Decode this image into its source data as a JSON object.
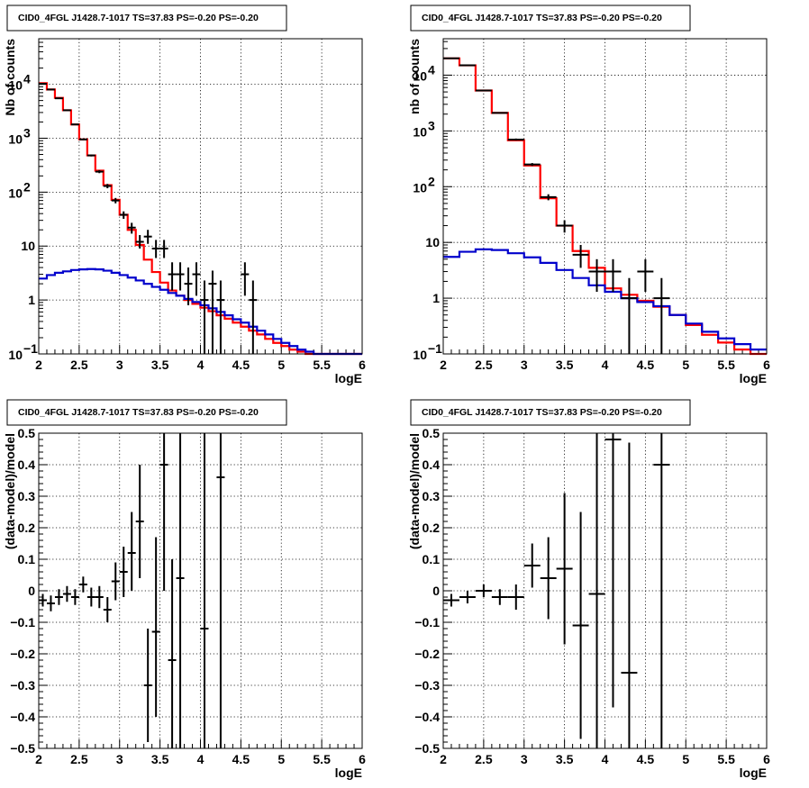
{
  "chart_data": [
    {
      "type": "line",
      "title": "CID0_4FGL J1428.7-1017 TS=37.83 PS=-0.20 PS=-0.20",
      "xlabel": "logE",
      "ylabel": "Nb of counts",
      "xlim": [
        2,
        6
      ],
      "ylim": [
        0.1,
        70000
      ],
      "yscale": "log",
      "grid": true,
      "x_ticks": [
        "2",
        "2.5",
        "3",
        "3.5",
        "4",
        "4.5",
        "5",
        "5.5",
        "6"
      ],
      "y_ticks": [
        {
          "v": 0.1,
          "base": "10",
          "exp": "−1",
          "text": ""
        },
        {
          "v": 1,
          "text": "1"
        },
        {
          "v": 10,
          "text": "10"
        },
        {
          "v": 100,
          "base": "10",
          "exp": "2",
          "text": ""
        },
        {
          "v": 1000,
          "base": "10",
          "exp": "3",
          "text": ""
        },
        {
          "v": 10000,
          "base": "10",
          "exp": "4",
          "text": ""
        }
      ],
      "bin_edges": [
        2.0,
        2.1,
        2.2,
        2.3,
        2.4,
        2.5,
        2.6,
        2.7,
        2.8,
        2.9,
        3.0,
        3.1,
        3.2,
        3.3,
        3.4,
        3.5,
        3.6,
        3.7,
        3.8,
        3.9,
        4.0,
        4.1,
        4.2,
        4.3,
        4.4,
        4.5,
        4.6,
        4.7,
        4.8,
        4.9,
        5.0,
        5.1,
        5.2,
        5.3,
        5.4,
        5.5,
        5.6,
        5.7,
        5.8,
        5.9,
        6.0
      ],
      "series": [
        {
          "color": "#ff0000",
          "values": [
            10500,
            8000,
            5600,
            3300,
            1800,
            950,
            480,
            250,
            135,
            72,
            38,
            20,
            10.5,
            5.6,
            3.3,
            2.1,
            1.5,
            1.2,
            1.0,
            0.85,
            0.72,
            0.62,
            0.52,
            0.45,
            0.38,
            0.32,
            0.27,
            0.23,
            0.19,
            0.16,
            0.14,
            0.12,
            0.11,
            0.1,
            0.1,
            0.1,
            0.1,
            0.1,
            0.1,
            0.1
          ]
        },
        {
          "color": "#0000cc",
          "values": [
            2.5,
            2.9,
            3.2,
            3.4,
            3.6,
            3.7,
            3.75,
            3.7,
            3.5,
            3.2,
            2.9,
            2.6,
            2.3,
            2.0,
            1.75,
            1.55,
            1.35,
            1.2,
            1.05,
            0.92,
            0.8,
            0.7,
            0.6,
            0.52,
            0.44,
            0.38,
            0.32,
            0.27,
            0.23,
            0.19,
            0.16,
            0.14,
            0.12,
            0.11,
            0.1,
            0.1,
            0.1,
            0.1,
            0.1,
            0.1
          ]
        }
      ],
      "points": [
        {
          "x": 2.05,
          "y": 10200,
          "dx": 0.05,
          "ylo": 10000,
          "yhi": 10400
        },
        {
          "x": 2.15,
          "y": 8000,
          "dx": 0.05,
          "ylo": 7900,
          "yhi": 8100
        },
        {
          "x": 2.25,
          "y": 5500,
          "dx": 0.05,
          "ylo": 5400,
          "yhi": 5600
        },
        {
          "x": 2.35,
          "y": 3300,
          "dx": 0.05,
          "ylo": 3250,
          "yhi": 3350
        },
        {
          "x": 2.45,
          "y": 1800,
          "dx": 0.05,
          "ylo": 1760,
          "yhi": 1840
        },
        {
          "x": 2.55,
          "y": 950,
          "dx": 0.05,
          "ylo": 920,
          "yhi": 980
        },
        {
          "x": 2.65,
          "y": 480,
          "dx": 0.05,
          "ylo": 460,
          "yhi": 500
        },
        {
          "x": 2.75,
          "y": 240,
          "dx": 0.05,
          "ylo": 225,
          "yhi": 255
        },
        {
          "x": 2.85,
          "y": 130,
          "dx": 0.05,
          "ylo": 118,
          "yhi": 142
        },
        {
          "x": 2.95,
          "y": 70,
          "dx": 0.05,
          "ylo": 62,
          "yhi": 78
        },
        {
          "x": 3.05,
          "y": 38,
          "dx": 0.05,
          "ylo": 32,
          "yhi": 44
        },
        {
          "x": 3.15,
          "y": 22,
          "dx": 0.05,
          "ylo": 17,
          "yhi": 27
        },
        {
          "x": 3.25,
          "y": 12,
          "dx": 0.05,
          "ylo": 9,
          "yhi": 16
        },
        {
          "x": 3.35,
          "y": 15,
          "dx": 0.05,
          "ylo": 11,
          "yhi": 20
        },
        {
          "x": 3.45,
          "y": 9,
          "dx": 0.05,
          "ylo": 6,
          "yhi": 13
        },
        {
          "x": 3.55,
          "y": 9,
          "dx": 0.05,
          "ylo": 6,
          "yhi": 13
        },
        {
          "x": 3.65,
          "y": 3,
          "dx": 0.05,
          "ylo": 1.5,
          "yhi": 5
        },
        {
          "x": 3.75,
          "y": 3,
          "dx": 0.05,
          "ylo": 1.5,
          "yhi": 5
        },
        {
          "x": 3.85,
          "y": 2,
          "dx": 0.05,
          "ylo": 0.8,
          "yhi": 4
        },
        {
          "x": 3.95,
          "y": 3,
          "dx": 0.05,
          "ylo": 1.2,
          "yhi": 5
        },
        {
          "x": 4.05,
          "y": 1,
          "dx": 0.05,
          "ylo": 0.1,
          "yhi": 2.3
        },
        {
          "x": 4.15,
          "y": 2,
          "dx": 0.05,
          "ylo": 0.1,
          "yhi": 3.5
        },
        {
          "x": 4.25,
          "y": 1,
          "dx": 0.05,
          "ylo": 0.1,
          "yhi": 2.3
        },
        {
          "x": 4.55,
          "y": 3,
          "dx": 0.05,
          "ylo": 1.2,
          "yhi": 5
        },
        {
          "x": 4.65,
          "y": 1,
          "dx": 0.05,
          "ylo": 0.1,
          "yhi": 2.3
        }
      ]
    },
    {
      "type": "line",
      "title": "CID0_4FGL J1428.7-1017 TS=37.83 PS=-0.20 PS=-0.20",
      "xlabel": "logE",
      "ylabel": "nb of counts",
      "xlim": [
        2,
        6
      ],
      "ylim": [
        0.1,
        45000
      ],
      "yscale": "log",
      "grid": true,
      "x_ticks": [
        "2",
        "2.5",
        "3",
        "3.5",
        "4",
        "4.5",
        "5",
        "5.5",
        "6"
      ],
      "y_ticks": [
        {
          "v": 0.1,
          "base": "10",
          "exp": "−1",
          "text": ""
        },
        {
          "v": 1,
          "text": "1"
        },
        {
          "v": 10,
          "text": "10"
        },
        {
          "v": 100,
          "base": "10",
          "exp": "2",
          "text": ""
        },
        {
          "v": 1000,
          "base": "10",
          "exp": "3",
          "text": ""
        },
        {
          "v": 10000,
          "base": "10",
          "exp": "4",
          "text": ""
        }
      ],
      "bin_edges": [
        2.0,
        2.2,
        2.4,
        2.6,
        2.8,
        3.0,
        3.2,
        3.4,
        3.6,
        3.8,
        4.0,
        4.2,
        4.4,
        4.6,
        4.8,
        5.0,
        5.2,
        5.4,
        5.6,
        5.8,
        6.0
      ],
      "series": [
        {
          "color": "#ff0000",
          "values": [
            20000,
            15000,
            5300,
            2100,
            680,
            240,
            62,
            20,
            7,
            3.5,
            1.5,
            1.15,
            0.9,
            0.7,
            0.5,
            0.33,
            0.22,
            0.16,
            0.12,
            0.1
          ]
        },
        {
          "color": "#0000cc",
          "values": [
            5.5,
            6.8,
            7.5,
            7.3,
            6.4,
            5.4,
            4.3,
            3.2,
            2.3,
            1.7,
            1.3,
            1.0,
            0.85,
            0.72,
            0.5,
            0.35,
            0.25,
            0.19,
            0.15,
            0.12
          ]
        }
      ],
      "points": [
        {
          "x": 2.1,
          "y": 20000,
          "dx": 0.1,
          "ylo": 19800,
          "yhi": 20200
        },
        {
          "x": 2.3,
          "y": 15000,
          "dx": 0.1,
          "ylo": 14850,
          "yhi": 15150
        },
        {
          "x": 2.5,
          "y": 5300,
          "dx": 0.1,
          "ylo": 5220,
          "yhi": 5380
        },
        {
          "x": 2.7,
          "y": 2100,
          "dx": 0.1,
          "ylo": 2050,
          "yhi": 2150
        },
        {
          "x": 2.9,
          "y": 700,
          "dx": 0.1,
          "ylo": 670,
          "yhi": 730
        },
        {
          "x": 3.1,
          "y": 250,
          "dx": 0.1,
          "ylo": 235,
          "yhi": 265
        },
        {
          "x": 3.3,
          "y": 65,
          "dx": 0.1,
          "ylo": 57,
          "yhi": 73
        },
        {
          "x": 3.5,
          "y": 20,
          "dx": 0.1,
          "ylo": 15,
          "yhi": 25
        },
        {
          "x": 3.7,
          "y": 6,
          "dx": 0.1,
          "ylo": 3.5,
          "yhi": 9
        },
        {
          "x": 3.9,
          "y": 3,
          "dx": 0.1,
          "ylo": 1.3,
          "yhi": 5
        },
        {
          "x": 4.1,
          "y": 3,
          "dx": 0.1,
          "ylo": 1.3,
          "yhi": 5
        },
        {
          "x": 4.3,
          "y": 1,
          "dx": 0.1,
          "ylo": 0.1,
          "yhi": 2.3
        },
        {
          "x": 4.5,
          "y": 3,
          "dx": 0.1,
          "ylo": 1.3,
          "yhi": 5
        },
        {
          "x": 4.7,
          "y": 1,
          "dx": 0.1,
          "ylo": 0.1,
          "yhi": 2.3
        }
      ]
    },
    {
      "type": "scatter",
      "title": "CID0_4FGL J1428.7-1017 TS=37.83 PS=-0.20 PS=-0.20",
      "xlabel": "logE",
      "ylabel": "(data-model)/model",
      "xlim": [
        2,
        6
      ],
      "ylim": [
        -0.5,
        0.5
      ],
      "yscale": "linear",
      "grid": true,
      "x_ticks": [
        "2",
        "2.5",
        "3",
        "3.5",
        "4",
        "4.5",
        "5",
        "5.5",
        "6"
      ],
      "y_ticks": [
        {
          "v": -0.5,
          "text": "−0.5"
        },
        {
          "v": -0.4,
          "text": "−0.4"
        },
        {
          "v": -0.3,
          "text": "−0.3"
        },
        {
          "v": -0.2,
          "text": "−0.2"
        },
        {
          "v": -0.1,
          "text": "−0.1"
        },
        {
          "v": 0,
          "text": "0"
        },
        {
          "v": 0.1,
          "text": "0.1"
        },
        {
          "v": 0.2,
          "text": "0.2"
        },
        {
          "v": 0.3,
          "text": "0.3"
        },
        {
          "v": 0.4,
          "text": "0.4"
        },
        {
          "v": 0.5,
          "text": "0.5"
        }
      ],
      "points": [
        {
          "x": 2.05,
          "y": -0.03,
          "dx": 0.05,
          "ylo": -0.05,
          "yhi": -0.01
        },
        {
          "x": 2.15,
          "y": -0.04,
          "dx": 0.05,
          "ylo": -0.065,
          "yhi": -0.015
        },
        {
          "x": 2.25,
          "y": -0.02,
          "dx": 0.05,
          "ylo": -0.045,
          "yhi": 0.005
        },
        {
          "x": 2.35,
          "y": -0.01,
          "dx": 0.05,
          "ylo": -0.035,
          "yhi": 0.015
        },
        {
          "x": 2.45,
          "y": -0.02,
          "dx": 0.05,
          "ylo": -0.045,
          "yhi": 0.005
        },
        {
          "x": 2.55,
          "y": 0.02,
          "dx": 0.05,
          "ylo": -0.005,
          "yhi": 0.045
        },
        {
          "x": 2.65,
          "y": -0.02,
          "dx": 0.05,
          "ylo": -0.05,
          "yhi": 0.01
        },
        {
          "x": 2.75,
          "y": -0.02,
          "dx": 0.05,
          "ylo": -0.055,
          "yhi": 0.015
        },
        {
          "x": 2.85,
          "y": -0.06,
          "dx": 0.05,
          "ylo": -0.1,
          "yhi": -0.02
        },
        {
          "x": 2.95,
          "y": 0.03,
          "dx": 0.05,
          "ylo": -0.03,
          "yhi": 0.09
        },
        {
          "x": 3.05,
          "y": 0.06,
          "dx": 0.05,
          "ylo": -0.02,
          "yhi": 0.14
        },
        {
          "x": 3.15,
          "y": 0.12,
          "dx": 0.05,
          "ylo": 0.0,
          "yhi": 0.25
        },
        {
          "x": 3.25,
          "y": 0.22,
          "dx": 0.05,
          "ylo": 0.04,
          "yhi": 0.4
        },
        {
          "x": 3.35,
          "y": -0.3,
          "dx": 0.05,
          "ylo": -0.48,
          "yhi": -0.12
        },
        {
          "x": 3.45,
          "y": -0.13,
          "dx": 0.05,
          "ylo": -0.4,
          "yhi": 0.17
        },
        {
          "x": 3.55,
          "y": 0.4,
          "dx": 0.05,
          "ylo": 0.0,
          "yhi": 0.5
        },
        {
          "x": 3.65,
          "y": -0.22,
          "dx": 0.05,
          "ylo": -0.5,
          "yhi": 0.1
        },
        {
          "x": 3.75,
          "y": 0.04,
          "dx": 0.05,
          "ylo": -0.5,
          "yhi": 0.5
        },
        {
          "x": 4.05,
          "y": -0.12,
          "dx": 0.05,
          "ylo": -0.5,
          "yhi": 0.5
        },
        {
          "x": 4.25,
          "y": 0.36,
          "dx": 0.05,
          "ylo": -0.5,
          "yhi": 0.5
        }
      ]
    },
    {
      "type": "scatter",
      "title": "CID0_4FGL J1428.7-1017 TS=37.83 PS=-0.20 PS=-0.20",
      "xlabel": "logE",
      "ylabel": "(data-model)/model",
      "xlim": [
        2,
        6
      ],
      "ylim": [
        -0.5,
        0.5
      ],
      "yscale": "linear",
      "grid": true,
      "x_ticks": [
        "2",
        "2.5",
        "3",
        "3.5",
        "4",
        "4.5",
        "5",
        "5.5",
        "6"
      ],
      "y_ticks": [
        {
          "v": -0.5,
          "text": "−0.5"
        },
        {
          "v": -0.4,
          "text": "−0.4"
        },
        {
          "v": -0.3,
          "text": "−0.3"
        },
        {
          "v": -0.2,
          "text": "−0.2"
        },
        {
          "v": -0.1,
          "text": "−0.1"
        },
        {
          "v": 0,
          "text": "0"
        },
        {
          "v": 0.1,
          "text": "0.1"
        },
        {
          "v": 0.2,
          "text": "0.2"
        },
        {
          "v": 0.3,
          "text": "0.3"
        },
        {
          "v": 0.4,
          "text": "0.4"
        },
        {
          "v": 0.5,
          "text": "0.5"
        }
      ],
      "points": [
        {
          "x": 2.1,
          "y": -0.03,
          "dx": 0.1,
          "ylo": -0.05,
          "yhi": -0.01
        },
        {
          "x": 2.3,
          "y": -0.02,
          "dx": 0.1,
          "ylo": -0.04,
          "yhi": 0.0
        },
        {
          "x": 2.5,
          "y": 0.0,
          "dx": 0.1,
          "ylo": -0.02,
          "yhi": 0.02
        },
        {
          "x": 2.7,
          "y": -0.02,
          "dx": 0.1,
          "ylo": -0.045,
          "yhi": 0.005
        },
        {
          "x": 2.9,
          "y": -0.02,
          "dx": 0.1,
          "ylo": -0.06,
          "yhi": 0.02
        },
        {
          "x": 3.1,
          "y": 0.08,
          "dx": 0.1,
          "ylo": 0.01,
          "yhi": 0.15
        },
        {
          "x": 3.3,
          "y": 0.04,
          "dx": 0.1,
          "ylo": -0.09,
          "yhi": 0.17
        },
        {
          "x": 3.5,
          "y": 0.07,
          "dx": 0.1,
          "ylo": -0.17,
          "yhi": 0.31
        },
        {
          "x": 3.7,
          "y": -0.11,
          "dx": 0.1,
          "ylo": -0.47,
          "yhi": 0.25
        },
        {
          "x": 3.9,
          "y": -0.01,
          "dx": 0.1,
          "ylo": -0.5,
          "yhi": 0.5
        },
        {
          "x": 4.1,
          "y": 0.48,
          "dx": 0.1,
          "ylo": -0.37,
          "yhi": 0.5
        },
        {
          "x": 4.3,
          "y": -0.26,
          "dx": 0.1,
          "ylo": -0.5,
          "yhi": 0.47
        },
        {
          "x": 4.7,
          "y": 0.4,
          "dx": 0.1,
          "ylo": -0.5,
          "yhi": 0.5
        }
      ]
    }
  ]
}
